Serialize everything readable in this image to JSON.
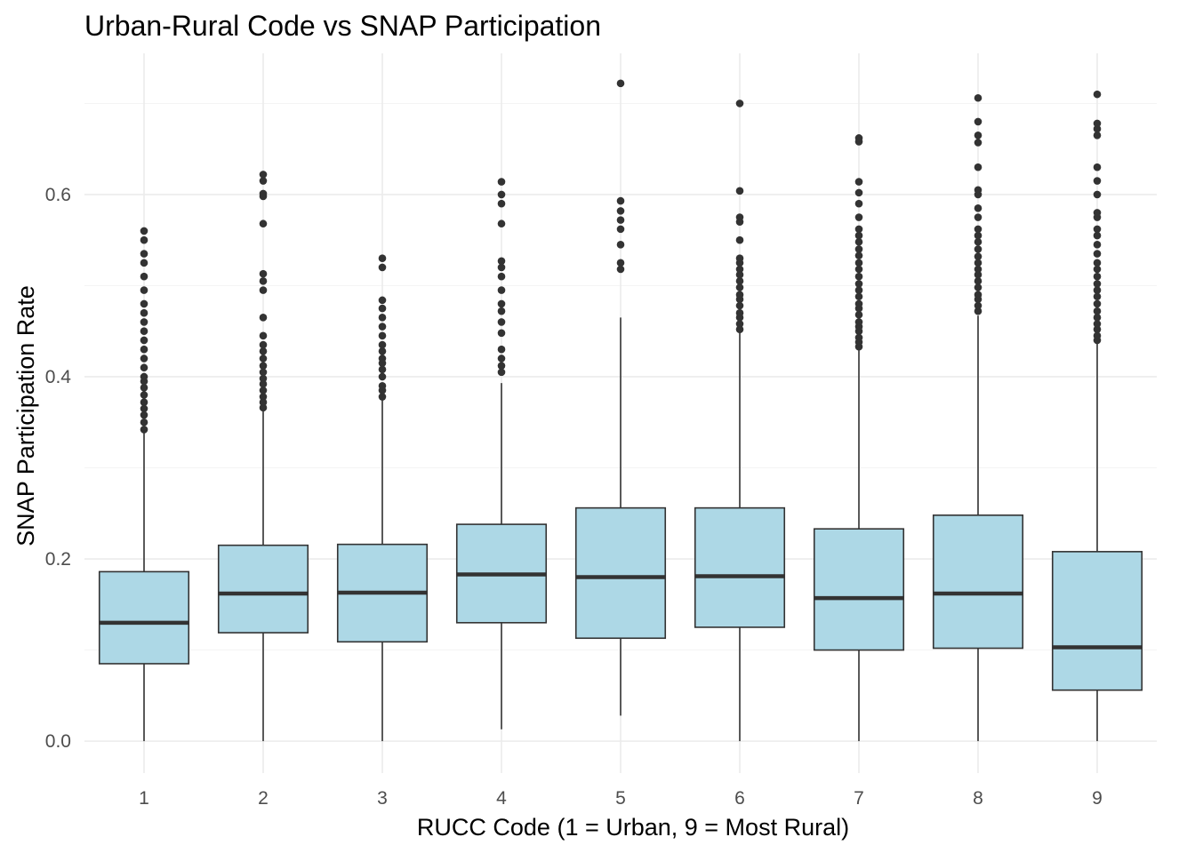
{
  "chart_data": {
    "type": "boxplot",
    "title": "Urban-Rural Code vs SNAP Participation",
    "xlabel": "RUCC Code (1 = Urban, 9 = Most Rural)",
    "ylabel": "SNAP Participation Rate",
    "categories": [
      "1",
      "2",
      "3",
      "4",
      "5",
      "6",
      "7",
      "8",
      "9"
    ],
    "y_ticks": [
      0.0,
      0.2,
      0.4,
      0.6
    ],
    "y_tick_labels": [
      "0.0",
      "0.2",
      "0.4",
      "0.6"
    ],
    "ylim": [
      -0.035,
      0.755
    ],
    "grid": true,
    "fill_color": "#add8e6",
    "line_color": "#333333",
    "boxes": [
      {
        "category": "1",
        "whisker_low": 0.0,
        "q1": 0.085,
        "median": 0.13,
        "q3": 0.186,
        "whisker_high": 0.338,
        "outliers": [
          0.342,
          0.35,
          0.358,
          0.365,
          0.372,
          0.38,
          0.388,
          0.395,
          0.4,
          0.41,
          0.42,
          0.43,
          0.44,
          0.45,
          0.46,
          0.47,
          0.48,
          0.495,
          0.51,
          0.525,
          0.535,
          0.55,
          0.56
        ]
      },
      {
        "category": "2",
        "whisker_low": 0.0,
        "q1": 0.119,
        "median": 0.162,
        "q3": 0.215,
        "whisker_high": 0.362,
        "outliers": [
          0.366,
          0.372,
          0.378,
          0.385,
          0.392,
          0.398,
          0.405,
          0.412,
          0.42,
          0.428,
          0.435,
          0.445,
          0.465,
          0.495,
          0.505,
          0.513,
          0.568,
          0.598,
          0.601,
          0.615,
          0.622
        ]
      },
      {
        "category": "3",
        "whisker_low": 0.0,
        "q1": 0.109,
        "median": 0.163,
        "q3": 0.216,
        "whisker_high": 0.375,
        "outliers": [
          0.378,
          0.385,
          0.39,
          0.4,
          0.408,
          0.415,
          0.42,
          0.428,
          0.435,
          0.445,
          0.455,
          0.465,
          0.475,
          0.484,
          0.52,
          0.53
        ]
      },
      {
        "category": "4",
        "whisker_low": 0.013,
        "q1": 0.13,
        "median": 0.183,
        "q3": 0.238,
        "whisker_high": 0.393,
        "outliers": [
          0.405,
          0.412,
          0.42,
          0.43,
          0.448,
          0.46,
          0.472,
          0.48,
          0.495,
          0.51,
          0.52,
          0.527,
          0.568,
          0.59,
          0.6,
          0.614
        ]
      },
      {
        "category": "5",
        "whisker_low": 0.028,
        "q1": 0.113,
        "median": 0.18,
        "q3": 0.256,
        "whisker_high": 0.465,
        "outliers": [
          0.518,
          0.525,
          0.545,
          0.562,
          0.572,
          0.582,
          0.593,
          0.722
        ]
      },
      {
        "category": "6",
        "whisker_low": 0.0,
        "q1": 0.125,
        "median": 0.181,
        "q3": 0.256,
        "whisker_high": 0.45,
        "outliers": [
          0.452,
          0.458,
          0.465,
          0.47,
          0.478,
          0.485,
          0.49,
          0.498,
          0.505,
          0.512,
          0.518,
          0.525,
          0.53,
          0.55,
          0.57,
          0.575,
          0.604,
          0.7
        ]
      },
      {
        "category": "7",
        "whisker_low": 0.0,
        "q1": 0.1,
        "median": 0.157,
        "q3": 0.233,
        "whisker_high": 0.43,
        "outliers": [
          0.433,
          0.438,
          0.443,
          0.45,
          0.455,
          0.46,
          0.468,
          0.475,
          0.48,
          0.488,
          0.495,
          0.502,
          0.51,
          0.518,
          0.525,
          0.533,
          0.54,
          0.548,
          0.555,
          0.562,
          0.575,
          0.59,
          0.602,
          0.614,
          0.658,
          0.662
        ]
      },
      {
        "category": "8",
        "whisker_low": 0.0,
        "q1": 0.102,
        "median": 0.162,
        "q3": 0.248,
        "whisker_high": 0.467,
        "outliers": [
          0.472,
          0.478,
          0.485,
          0.49,
          0.498,
          0.505,
          0.512,
          0.518,
          0.525,
          0.532,
          0.54,
          0.548,
          0.555,
          0.562,
          0.575,
          0.585,
          0.6,
          0.605,
          0.63,
          0.657,
          0.665,
          0.68,
          0.706
        ]
      },
      {
        "category": "9",
        "whisker_low": 0.0,
        "q1": 0.056,
        "median": 0.103,
        "q3": 0.208,
        "whisker_high": 0.437,
        "outliers": [
          0.44,
          0.445,
          0.452,
          0.458,
          0.465,
          0.472,
          0.48,
          0.488,
          0.495,
          0.502,
          0.51,
          0.518,
          0.525,
          0.535,
          0.545,
          0.555,
          0.562,
          0.575,
          0.58,
          0.6,
          0.615,
          0.63,
          0.665,
          0.672,
          0.678,
          0.71
        ]
      }
    ]
  }
}
